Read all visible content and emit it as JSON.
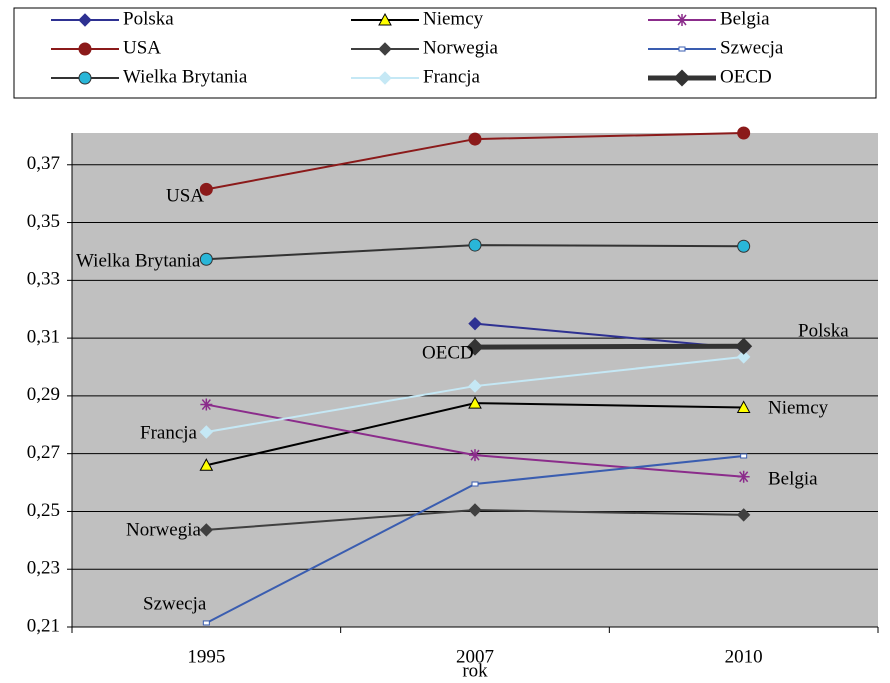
{
  "chart_data": {
    "type": "line",
    "x_label": "rok",
    "categories": [
      "1995",
      "2007",
      "2010"
    ],
    "ylim": [
      0.21,
      0.381
    ],
    "yticks": [
      {
        "value": 0.21,
        "label": "0,21"
      },
      {
        "value": 0.23,
        "label": "0,23"
      },
      {
        "value": 0.25,
        "label": "0,25"
      },
      {
        "value": 0.27,
        "label": "0,27"
      },
      {
        "value": 0.29,
        "label": "0,29"
      },
      {
        "value": 0.31,
        "label": "0,31"
      },
      {
        "value": 0.33,
        "label": "0,33"
      },
      {
        "value": 0.35,
        "label": "0,35"
      },
      {
        "value": 0.37,
        "label": "0,37"
      }
    ],
    "grid": true,
    "plot_background": "#c0c0c0",
    "series": [
      {
        "name": "Polska",
        "color": "#2e3192",
        "marker": "diamond",
        "marker_color": "#2e3192",
        "line_width": 2,
        "values": [
          null,
          0.315,
          0.3065
        ]
      },
      {
        "name": "Niemcy",
        "color": "#000000",
        "marker": "triangle",
        "marker_color": "#ffff00",
        "line_width": 2,
        "values": [
          0.266,
          0.2875,
          0.286
        ]
      },
      {
        "name": "Belgia",
        "color": "#8b2c8b",
        "marker": "asterisk",
        "marker_color": "#8b2c8b",
        "line_width": 2,
        "values": [
          0.287,
          0.2695,
          0.262
        ]
      },
      {
        "name": "USA",
        "color": "#8b1a1a",
        "marker": "circle",
        "marker_color": "#8b1a1a",
        "line_width": 2,
        "values": [
          0.3615,
          0.3789,
          0.381
        ]
      },
      {
        "name": "Norwegia",
        "color": "#404040",
        "marker": "diamond",
        "marker_color": "#404040",
        "line_width": 2,
        "values": [
          0.2436,
          0.2505,
          0.2488
        ]
      },
      {
        "name": "Szwecja",
        "color": "#3a5db0",
        "marker": "square",
        "marker_color": "#3a5db0",
        "line_width": 2,
        "values": [
          0.2114,
          0.2595,
          0.2692
        ]
      },
      {
        "name": "Wielka Brytania",
        "color": "#333333",
        "marker": "circle",
        "marker_color": "#29b6d8",
        "line_width": 2,
        "values": [
          0.3373,
          0.3422,
          0.3418
        ]
      },
      {
        "name": "Francja",
        "color": "#c5e8f5",
        "marker": "diamond",
        "marker_color": "#c5e8f5",
        "line_width": 2,
        "values": [
          0.2775,
          0.2934,
          0.3035
        ]
      },
      {
        "name": "OECD",
        "color": "#333333",
        "marker": "diamond",
        "marker_color": "#333333",
        "line_width": 5,
        "values": [
          null,
          0.3069,
          0.3072
        ]
      }
    ]
  }
}
